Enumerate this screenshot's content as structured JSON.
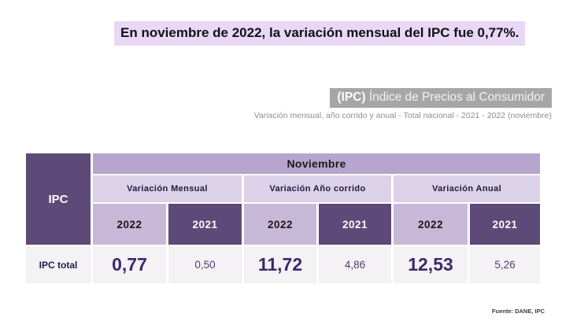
{
  "headline": "En noviembre de 2022, la variación mensual del IPC fue 0,77%.",
  "title": {
    "tag": "(IPC)",
    "rest": " Índice de Precios al Consumidor"
  },
  "subtitle": "Variación mensual, año corrido y anual - Total nacional  - 2021 - 2022 (noviembre)",
  "source": "Fuente: DANE, IPC",
  "colors": {
    "highlight": "#e9d7f6",
    "dark_purple": "#5e4a78",
    "medium_lavender": "#b7a5cd",
    "light_lavender": "#dbd1e8",
    "year_2022_lavender": "#c8b8d8",
    "data_row_bg": "#f4f2f5",
    "title_box_gray": "#a6a6a6",
    "value_purple": "#3b2a6b"
  },
  "chart_data": {
    "type": "table",
    "title": "(IPC) Índice de Precios al Consumidor",
    "subtitle": "Variación mensual, año corrido y anual - Total nacional - 2021 - 2022 (noviembre)",
    "group_header": "Noviembre",
    "corner_label": "IPC",
    "sections": [
      {
        "label": "Variación Mensual",
        "years": [
          "2022",
          "2021"
        ]
      },
      {
        "label": "Variación Año corrido",
        "years": [
          "2022",
          "2021"
        ]
      },
      {
        "label": "Variación Anual",
        "years": [
          "2022",
          "2021"
        ]
      }
    ],
    "rows": [
      {
        "label": "IPC total",
        "values": [
          "0,77",
          "0,50",
          "11,72",
          "4,86",
          "12,53",
          "5,26"
        ]
      }
    ]
  }
}
